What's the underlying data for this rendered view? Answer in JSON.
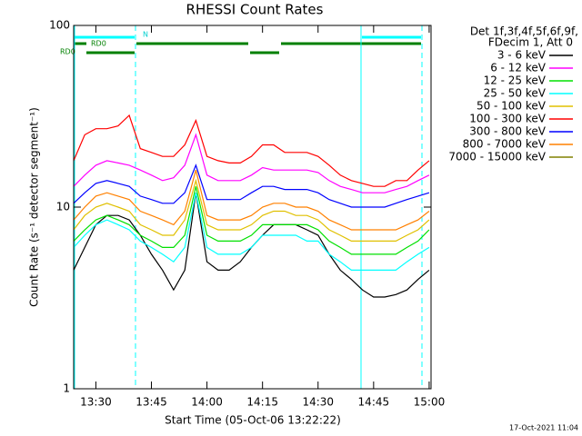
{
  "chart_data": {
    "type": "line",
    "title": "RHESSI Count Rates",
    "x_label": "Start Time (05-Oct-06 13:22:22)",
    "y_label": "Count Rate (s⁻¹ detector segment⁻¹)",
    "legend_header": [
      "Det 1f,3f,4f,5f,6f,9f,",
      "FDecim 1, Att 0"
    ],
    "annotations": [
      "N",
      "RD0",
      "RD0"
    ],
    "footer": "17-Oct-2021 11:04",
    "log_y": true,
    "xlim": [
      "13:24",
      "15:01"
    ],
    "xticks": [
      "13:30",
      "13:45",
      "14:00",
      "14:15",
      "14:30",
      "14:45",
      "15:00"
    ],
    "ylim": [
      1,
      100
    ],
    "yticks": [
      1,
      10,
      100
    ],
    "x": [
      "13:24",
      "13:27",
      "13:30",
      "13:33",
      "13:36",
      "13:39",
      "13:42",
      "13:45",
      "13:48",
      "13:51",
      "13:54",
      "13:57",
      "14:00",
      "14:03",
      "14:06",
      "14:09",
      "14:12",
      "14:15",
      "14:18",
      "14:21",
      "14:24",
      "14:27",
      "14:30",
      "14:33",
      "14:36",
      "14:39",
      "14:42",
      "14:45",
      "14:48",
      "14:51",
      "14:54",
      "14:57",
      "15:00"
    ],
    "series": [
      {
        "name": "3 - 6 keV",
        "color": "#000000",
        "values": [
          4.5,
          6,
          8,
          9,
          9,
          8.5,
          7,
          5.5,
          4.5,
          3.5,
          4.5,
          12,
          5,
          4.5,
          4.5,
          5,
          6,
          7,
          8,
          8,
          8,
          7.5,
          7,
          5.5,
          4.5,
          4,
          3.5,
          3.2,
          3.2,
          3.3,
          3.5,
          4,
          4.5
        ]
      },
      {
        "name": "6 - 12 keV",
        "color": "#ff00ff",
        "values": [
          13,
          15,
          17,
          18,
          17.5,
          17,
          16,
          15,
          14,
          14.5,
          17,
          25,
          15,
          14,
          14,
          14,
          15,
          16.5,
          16,
          16,
          16,
          16,
          15.5,
          14,
          13,
          12.5,
          12,
          12,
          12,
          12.5,
          13,
          14,
          15
        ]
      },
      {
        "name": "12 - 25 keV",
        "color": "#00e000",
        "values": [
          6.5,
          7.5,
          8.5,
          9,
          8.5,
          8,
          7,
          6.5,
          6,
          6,
          7,
          13,
          7,
          6.5,
          6.5,
          6.5,
          7,
          8,
          8,
          8,
          8,
          8,
          7.5,
          6.5,
          6,
          5.5,
          5.5,
          5.5,
          5.5,
          5.5,
          6,
          6.5,
          7.5
        ]
      },
      {
        "name": "25 - 50 keV",
        "color": "#00ffff",
        "values": [
          6,
          7,
          8,
          8.5,
          8,
          7.5,
          6.5,
          6,
          5.5,
          5,
          6,
          12,
          6,
          5.5,
          5.5,
          5.5,
          6,
          7,
          7,
          7,
          7,
          6.5,
          6.5,
          5.5,
          5,
          4.5,
          4.5,
          4.5,
          4.5,
          4.5,
          5,
          5.5,
          6
        ]
      },
      {
        "name": "50 - 100 keV",
        "color": "#e0c000",
        "values": [
          7.5,
          9,
          10,
          10.5,
          10,
          9.5,
          8,
          7.5,
          7,
          7,
          8.5,
          14,
          8,
          7.5,
          7.5,
          7.5,
          8,
          9,
          9.5,
          9.5,
          9,
          9,
          8.5,
          7.5,
          7,
          6.5,
          6.5,
          6.5,
          6.5,
          6.5,
          7,
          7.5,
          8.5
        ]
      },
      {
        "name": "100 - 300 keV",
        "color": "#ff0000",
        "values": [
          18,
          25,
          27,
          27,
          28,
          32,
          21,
          20,
          19,
          19,
          22,
          30,
          19,
          18,
          17.5,
          17.5,
          19,
          22,
          22,
          20,
          20,
          20,
          19,
          17,
          15,
          14,
          13.5,
          13,
          13,
          14,
          14,
          16,
          18
        ]
      },
      {
        "name": "300 - 800 keV",
        "color": "#0000ff",
        "values": [
          10.5,
          12,
          13.5,
          14,
          13.5,
          13,
          11.5,
          11,
          10.5,
          10.5,
          12,
          17,
          11,
          11,
          11,
          11,
          12,
          13,
          13,
          12.5,
          12.5,
          12.5,
          12,
          11,
          10.5,
          10,
          10,
          10,
          10,
          10.5,
          11,
          11.5,
          12
        ]
      },
      {
        "name": "800 - 7000 keV",
        "color": "#ff8000",
        "values": [
          8.5,
          10,
          11.5,
          12,
          11.5,
          11,
          9.5,
          9,
          8.5,
          8,
          9.5,
          16,
          9,
          8.5,
          8.5,
          8.5,
          9,
          10,
          10.5,
          10.5,
          10,
          10,
          9.5,
          8.5,
          8,
          7.5,
          7.5,
          7.5,
          7.5,
          7.5,
          8,
          8.5,
          9.5
        ]
      },
      {
        "name": "7000 - 15000 keV",
        "color": "#808000",
        "values": [
          null,
          null,
          null,
          null,
          null,
          null,
          null,
          null,
          null,
          null,
          null,
          null,
          null,
          null,
          null,
          null,
          null,
          null,
          null,
          null,
          null,
          null,
          null,
          null,
          null,
          null,
          null,
          null,
          null,
          null,
          null,
          null,
          null
        ]
      }
    ]
  }
}
